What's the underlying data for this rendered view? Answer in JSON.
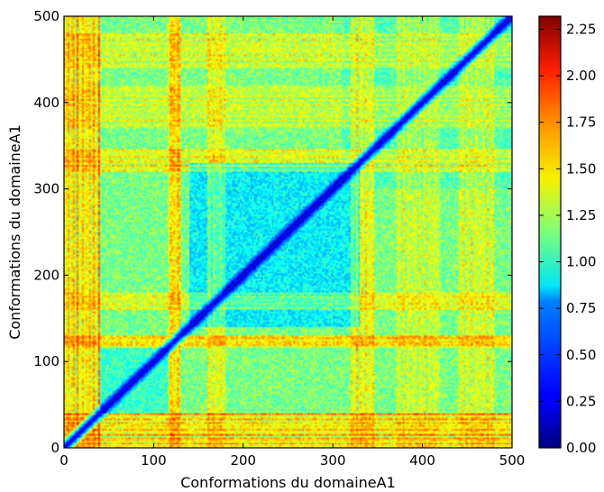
{
  "chart_data": {
    "type": "heatmap",
    "title": "",
    "xlabel": "Conformations du domaineA1",
    "ylabel": "Conformations du domaineA1",
    "xlim": [
      0,
      500
    ],
    "ylim": [
      0,
      500
    ],
    "x_ticks": [
      "0",
      "100",
      "200",
      "300",
      "400",
      "500"
    ],
    "y_ticks": [
      "0",
      "100",
      "200",
      "300",
      "400",
      "500"
    ],
    "colorbar": {
      "range": [
        0,
        2.32
      ],
      "colormap": "jet",
      "ticks": [
        "0.00",
        "0.25",
        "0.50",
        "0.75",
        "1.00",
        "1.25",
        "1.50",
        "1.75",
        "2.00",
        "2.25"
      ]
    },
    "matrix": {
      "size": 500,
      "diagonal_value": 0.0,
      "background_value": 1.15,
      "high_bands": [
        {
          "from": 0,
          "to": 40,
          "value": 1.75
        },
        {
          "from": 115,
          "to": 130,
          "value": 1.8
        },
        {
          "from": 160,
          "to": 180,
          "value": 1.55
        },
        {
          "from": 320,
          "to": 345,
          "value": 1.6
        },
        {
          "from": 370,
          "to": 420,
          "value": 1.45
        },
        {
          "from": 440,
          "to": 480,
          "value": 1.5
        }
      ],
      "low_blocks": [
        {
          "x": [
            140,
            330
          ],
          "y": [
            140,
            330
          ],
          "value": 0.85
        },
        {
          "x": [
            310,
            500
          ],
          "y": [
            300,
            500
          ],
          "value": 1.05
        },
        {
          "x": [
            40,
            115
          ],
          "y": [
            40,
            115
          ],
          "value": 1.0
        }
      ]
    }
  }
}
